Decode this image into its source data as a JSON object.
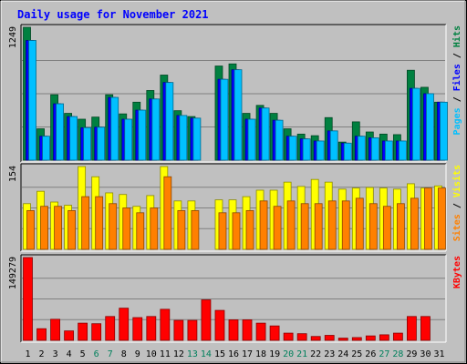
{
  "chart_data": {
    "type": "bar",
    "title": "Daily usage for November 2021",
    "categories": [
      "1",
      "2",
      "3",
      "4",
      "5",
      "6",
      "7",
      "8",
      "9",
      "10",
      "11",
      "12",
      "13",
      "14",
      "15",
      "16",
      "17",
      "18",
      "19",
      "20",
      "21",
      "22",
      "23",
      "24",
      "25",
      "26",
      "27",
      "28",
      "29",
      "30",
      "31"
    ],
    "weekend_days": [
      "6",
      "7",
      "13",
      "14",
      "20",
      "21",
      "27",
      "28"
    ],
    "panels": [
      {
        "name": "hits-files-pages",
        "max_label": "1249",
        "ymax": 1249,
        "legend": [
          {
            "text": "Pages",
            "color": "#00c0ff"
          },
          {
            "text": " / ",
            "color": "#000000"
          },
          {
            "text": "Files",
            "color": "#0000ff"
          },
          {
            "text": " / ",
            "color": "#000000"
          },
          {
            "text": "Hits",
            "color": "#008040"
          }
        ],
        "series": [
          {
            "name": "Hits",
            "color": "#008040",
            "values": [
              1249,
              295,
              615,
              440,
              385,
              405,
              615,
              435,
              545,
              655,
              800,
              465,
              410,
              0,
              885,
              905,
              440,
              515,
              440,
              295,
              245,
              230,
              400,
              170,
              360,
              265,
              245,
              240,
              845,
              685,
              545
            ]
          },
          {
            "name": "Files",
            "color": "#0000ff",
            "values": [
              1125,
              225,
              530,
              410,
              305,
              310,
              590,
              385,
              470,
              575,
              730,
              420,
              395,
              0,
              760,
              850,
              385,
              490,
              375,
              225,
              200,
              180,
              275,
              160,
              225,
              210,
              180,
              180,
              675,
              625,
              545
            ]
          },
          {
            "name": "Pages",
            "color": "#00c0ff",
            "values": [
              1125,
              225,
              530,
              410,
              305,
              310,
              590,
              385,
              470,
              575,
              730,
              420,
              395,
              0,
              760,
              850,
              385,
              490,
              375,
              225,
              200,
              180,
              275,
              160,
              225,
              210,
              180,
              180,
              675,
              625,
              545
            ]
          }
        ]
      },
      {
        "name": "visits-sites",
        "max_label": "154",
        "ymax": 154,
        "legend": [
          {
            "text": "Sites",
            "color": "#ff8000"
          },
          {
            "text": " / ",
            "color": "#000000"
          },
          {
            "text": "Visits",
            "color": "#ffff00"
          }
        ],
        "series": [
          {
            "name": "Visits",
            "color": "#ffff00",
            "values": [
              85,
              108,
              88,
              82,
              154,
              135,
              105,
              102,
              80,
              100,
              154,
              90,
              90,
              0,
              92,
              92,
              98,
              110,
              110,
              125,
              117,
              130,
              125,
              112,
              114,
              115,
              114,
              112,
              122,
              114,
              118
            ]
          },
          {
            "name": "Sites",
            "color": "#ff8000",
            "values": [
              72,
              80,
              80,
              72,
              98,
              98,
              85,
              77,
              68,
              77,
              135,
              72,
              72,
              0,
              68,
              68,
              72,
              90,
              80,
              90,
              85,
              85,
              90,
              90,
              95,
              85,
              80,
              85,
              95,
              114,
              114
            ]
          }
        ]
      },
      {
        "name": "kbytes",
        "max_label": "149279",
        "ymax": 149279,
        "legend": [
          {
            "text": "KBytes",
            "color": "#ff0000"
          }
        ],
        "series": [
          {
            "name": "KBytes",
            "color": "#ff0000",
            "values": [
              149279,
              21000,
              38000,
              17000,
              31000,
              30000,
              43000,
              58000,
              41000,
              43000,
              56000,
              36000,
              36000,
              73000,
              54000,
              37000,
              37000,
              31000,
              26000,
              13000,
              12000,
              7000,
              9000,
              4000,
              5000,
              8000,
              10000,
              13000,
              43000,
              43000,
              0
            ]
          }
        ]
      }
    ]
  }
}
